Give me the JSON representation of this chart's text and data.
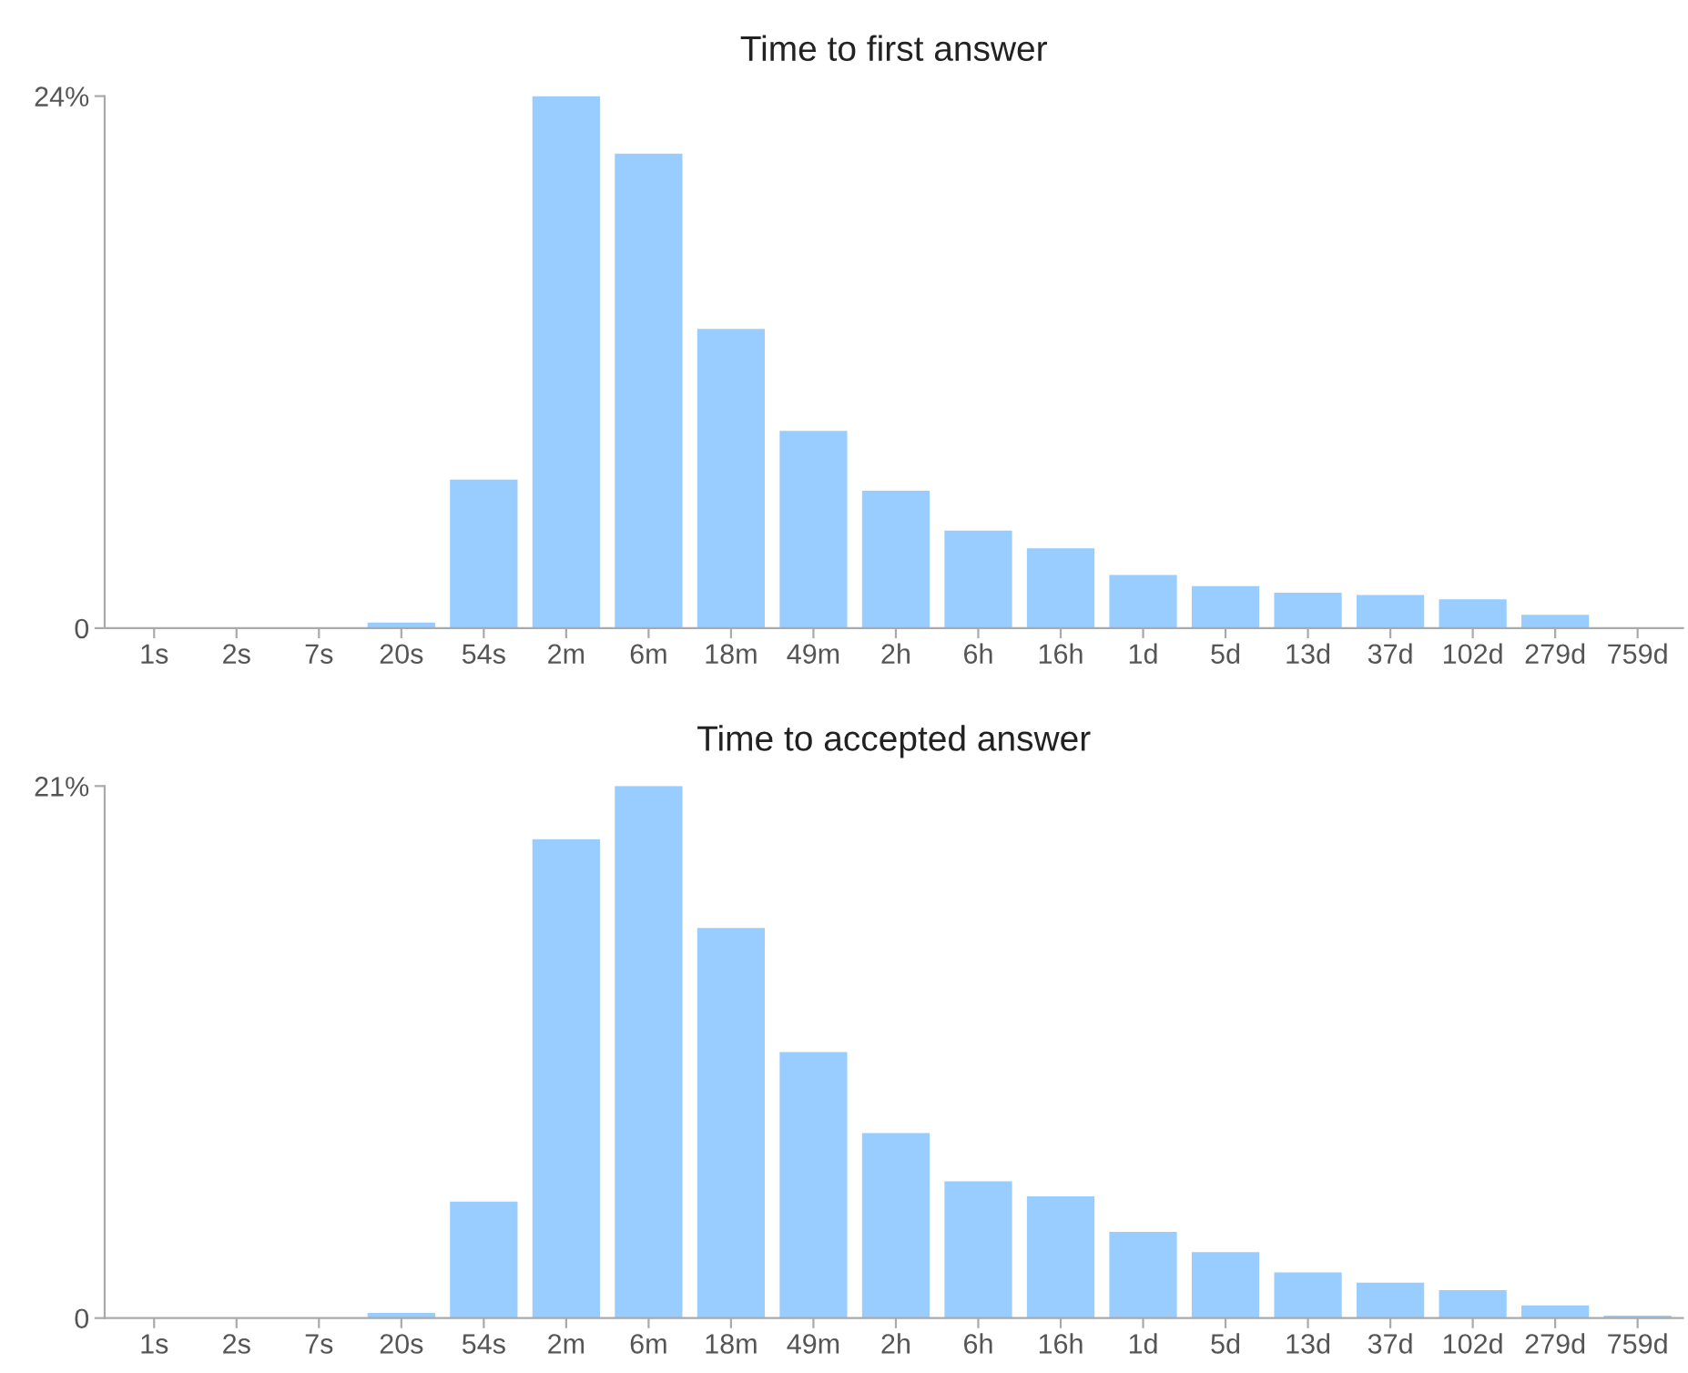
{
  "chart_data": [
    {
      "type": "bar",
      "title": "Time to first answer",
      "categories": [
        "1s",
        "2s",
        "7s",
        "20s",
        "54s",
        "2m",
        "6m",
        "18m",
        "49m",
        "2h",
        "6h",
        "16h",
        "1d",
        "5d",
        "13d",
        "37d",
        "102d",
        "279d",
        "759d"
      ],
      "values": [
        0,
        0,
        0,
        0.25,
        6.7,
        24,
        21.4,
        13.5,
        8.9,
        6.2,
        4.4,
        3.6,
        2.4,
        1.9,
        1.6,
        1.5,
        1.3,
        0.6,
        0
      ],
      "color": "#99ccff",
      "ylim": [
        0,
        24
      ],
      "yticks": [
        0,
        {
          "value": 24,
          "label": "24%"
        }
      ],
      "grid": false
    },
    {
      "type": "bar",
      "title": "Time to accepted answer",
      "categories": [
        "1s",
        "2s",
        "7s",
        "20s",
        "54s",
        "2m",
        "6m",
        "18m",
        "49m",
        "2h",
        "6h",
        "16h",
        "1d",
        "5d",
        "13d",
        "37d",
        "102d",
        "279d",
        "759d"
      ],
      "values": [
        0,
        0,
        0,
        0.2,
        4.6,
        18.9,
        21,
        15.4,
        10.5,
        7.3,
        5.4,
        4.8,
        3.4,
        2.6,
        1.8,
        1.4,
        1.1,
        0.5,
        0.1
      ],
      "color": "#99ccff",
      "ylim": [
        0,
        21
      ],
      "yticks": [
        0,
        {
          "value": 21,
          "label": "21%"
        }
      ],
      "grid": false
    }
  ]
}
